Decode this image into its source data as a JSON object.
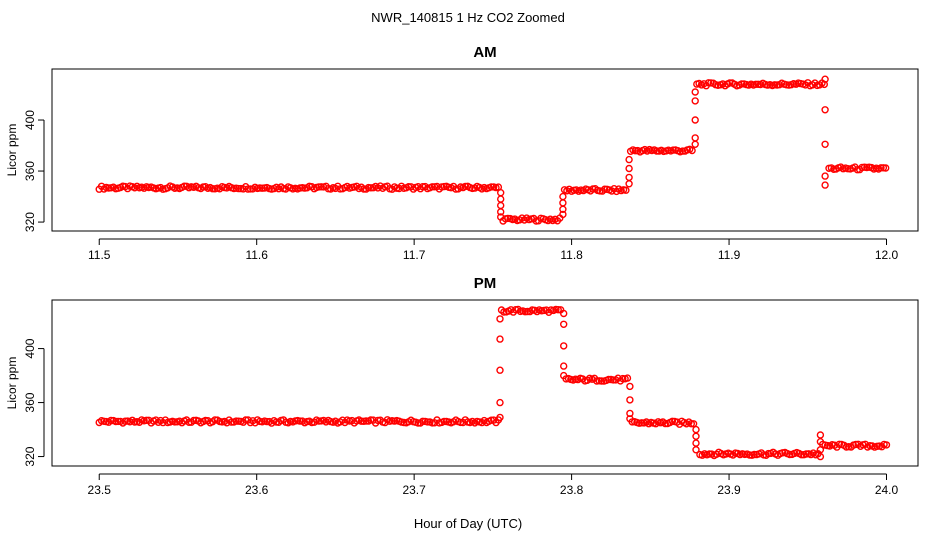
{
  "figure": {
    "title": "NWR_140815  1 Hz CO2 Zoomed",
    "xlabel": "Hour of Day (UTC)",
    "point_color": "#ff0000"
  },
  "chart_data": [
    {
      "type": "scatter",
      "title": "AM",
      "ylabel": "Licor ppm",
      "xlim": [
        11.47,
        12.02
      ],
      "ylim": [
        313,
        440
      ],
      "xticks": [
        11.5,
        11.6,
        11.7,
        11.8,
        11.9,
        12.0
      ],
      "xtick_labels": [
        "11.5",
        "11.6",
        "11.7",
        "11.8",
        "11.9",
        "12.0"
      ],
      "yticks": [
        320,
        360,
        400
      ],
      "ytick_labels": [
        "320",
        "360",
        "400"
      ],
      "segments": [
        {
          "x_start": 11.5,
          "x_end": 11.7545,
          "y": 347
        },
        {
          "x_start": 11.7565,
          "x_end": 11.7935,
          "y": 322
        },
        {
          "x_start": 11.7955,
          "x_end": 11.8355,
          "y": 345
        },
        {
          "x_start": 11.8375,
          "x_end": 11.8775,
          "y": 376
        },
        {
          "x_start": 11.8795,
          "x_end": 11.9605,
          "y": 428
        },
        {
          "x_start": 11.9635,
          "x_end": 12.0,
          "y": 362
        }
      ],
      "transitions": [
        {
          "x": 11.755,
          "y": [
            343,
            338,
            333,
            328,
            324
          ]
        },
        {
          "x": 11.7945,
          "y": [
            326,
            330,
            335,
            340
          ]
        },
        {
          "x": 11.8365,
          "y": [
            350,
            355,
            362,
            369
          ]
        },
        {
          "x": 11.8785,
          "y": [
            381,
            386,
            400,
            415,
            422
          ]
        },
        {
          "x": 11.961,
          "y": [
            432,
            408,
            381,
            356,
            349
          ]
        }
      ]
    },
    {
      "type": "scatter",
      "title": "PM",
      "ylabel": "Licor ppm",
      "xlim": [
        23.47,
        24.02
      ],
      "ylim": [
        313,
        436
      ],
      "xticks": [
        23.5,
        23.6,
        23.7,
        23.8,
        23.9,
        24.0
      ],
      "xtick_labels": [
        "23.5",
        "23.6",
        "23.7",
        "23.8",
        "23.9",
        "24.0"
      ],
      "yticks": [
        320,
        360,
        400
      ],
      "ytick_labels": [
        "320",
        "360",
        "400"
      ],
      "segments": [
        {
          "x_start": 23.5,
          "x_end": 23.7535,
          "y": 346
        },
        {
          "x_start": 23.7555,
          "x_end": 23.7935,
          "y": 428
        },
        {
          "x_start": 23.7965,
          "x_end": 23.8355,
          "y": 377
        },
        {
          "x_start": 23.8385,
          "x_end": 23.8775,
          "y": 345
        },
        {
          "x_start": 23.8815,
          "x_end": 23.9575,
          "y": 322
        },
        {
          "x_start": 23.9595,
          "x_end": 24.0,
          "y": 328
        }
      ],
      "transitions": [
        {
          "x": 23.7545,
          "y": [
            349,
            360,
            384,
            407,
            422
          ]
        },
        {
          "x": 23.795,
          "y": [
            426,
            418,
            402,
            387,
            380
          ]
        },
        {
          "x": 23.837,
          "y": [
            372,
            362,
            352,
            348
          ]
        },
        {
          "x": 23.879,
          "y": [
            340,
            335,
            330,
            325
          ]
        },
        {
          "x": 23.958,
          "y": [
            320,
            325,
            331,
            336
          ]
        }
      ]
    }
  ]
}
